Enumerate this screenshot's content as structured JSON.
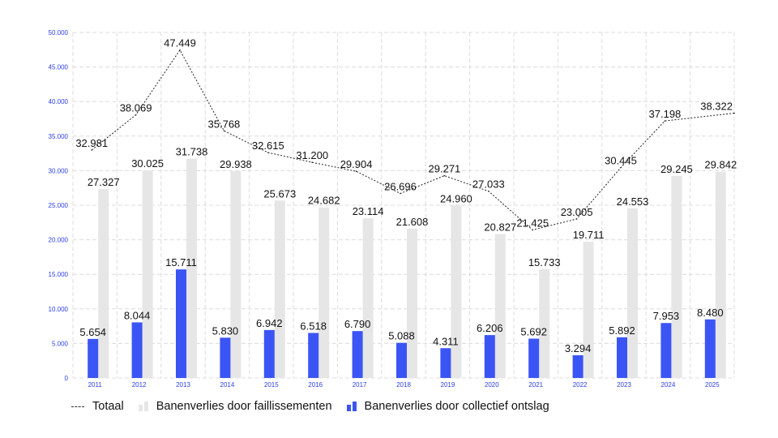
{
  "chart_data": {
    "type": "bar",
    "categories": [
      "2011",
      "2012",
      "2013",
      "2014",
      "2015",
      "2016",
      "2017",
      "2018",
      "2019",
      "2020",
      "2021",
      "2022",
      "2023",
      "2024",
      "2025"
    ],
    "series": [
      {
        "name": "Totaal",
        "kind": "line",
        "values": [
          32981,
          38069,
          47449,
          35768,
          32615,
          31200,
          29904,
          26696,
          29271,
          27033,
          21425,
          23005,
          30445,
          37198,
          38322
        ],
        "labels": [
          "32.981",
          "38.069",
          "47.449",
          "35.768",
          "32.615",
          "31.200",
          "29.904",
          "26.696",
          "29.271",
          "27.033",
          "21.425",
          "23.005",
          "30.445",
          "37.198",
          "38.322"
        ],
        "color": "#222222"
      },
      {
        "name": "Banenverlies door faillissementen",
        "kind": "bar",
        "values": [
          27327,
          30025,
          31738,
          29938,
          25673,
          24682,
          23114,
          21608,
          24960,
          20827,
          15733,
          19711,
          24553,
          29245,
          29842
        ],
        "labels": [
          "27.327",
          "30.025",
          "31.738",
          "29.938",
          "25.673",
          "24.682",
          "23.114",
          "21.608",
          "24.960",
          "20.827",
          "15.733",
          "19.711",
          "24.553",
          "29.245",
          "29.842"
        ],
        "color": "#e6e6e6"
      },
      {
        "name": "Banenverlies door collectief ontslag",
        "kind": "bar",
        "values": [
          5654,
          8044,
          15711,
          5830,
          6942,
          6518,
          6790,
          5088,
          4311,
          6206,
          5692,
          3294,
          5892,
          7953,
          8480
        ],
        "labels": [
          "5.654",
          "8.044",
          "15.711",
          "5.830",
          "6.942",
          "6.518",
          "6.790",
          "5.088",
          "4.311",
          "6.206",
          "5.692",
          "3.294",
          "5.892",
          "7.953",
          "8.480"
        ],
        "color": "#3b55f5"
      }
    ],
    "ylim": [
      0,
      50000
    ],
    "yticks": [
      "0",
      "5.000",
      "10.000",
      "15.000",
      "20.000",
      "25.000",
      "30.000",
      "35.000",
      "40.000",
      "45.000",
      "50.000"
    ],
    "grid": true,
    "legend_position": "bottom-left",
    "title": "",
    "xlabel": "",
    "ylabel": ""
  },
  "legend": {
    "total": "Totaal",
    "bankruptcy": "Banenverlies door faillissementen",
    "collective": "Banenverlies door collectief ontslag"
  }
}
